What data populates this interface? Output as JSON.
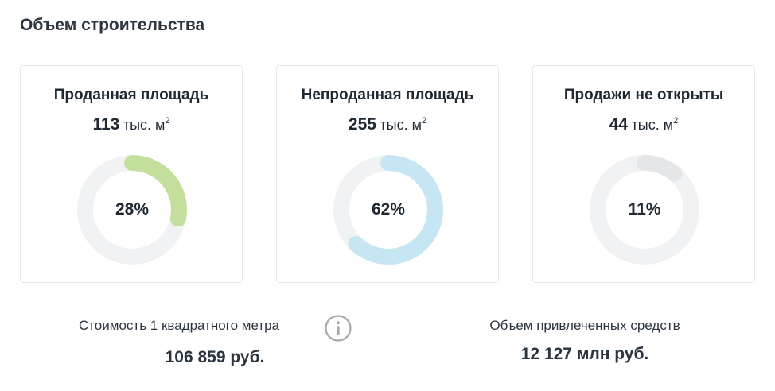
{
  "section_title": "Объем строительства",
  "unit_prefix": "тыс. м",
  "unit_sup": "2",
  "cards": [
    {
      "title": "Проданная площадь",
      "value": "113",
      "percent_label": "28%",
      "percent": 28,
      "color": "#c3df9b"
    },
    {
      "title": "Непроданная площадь",
      "value": "255",
      "percent_label": "62%",
      "percent": 62,
      "color": "#c6e6f3"
    },
    {
      "title": "Продажи не открыты",
      "value": "44",
      "percent_label": "11%",
      "percent": 11,
      "color": "#e4e6e8"
    }
  ],
  "track_color": "#f1f2f4",
  "metrics": {
    "price_label": "Стоимость 1 квадратного метра",
    "price_value": "106 859 руб.",
    "funds_label": "Объем привлеченных средств",
    "funds_value": "12 127 млн руб."
  },
  "icons": {
    "info": "info-icon"
  }
}
